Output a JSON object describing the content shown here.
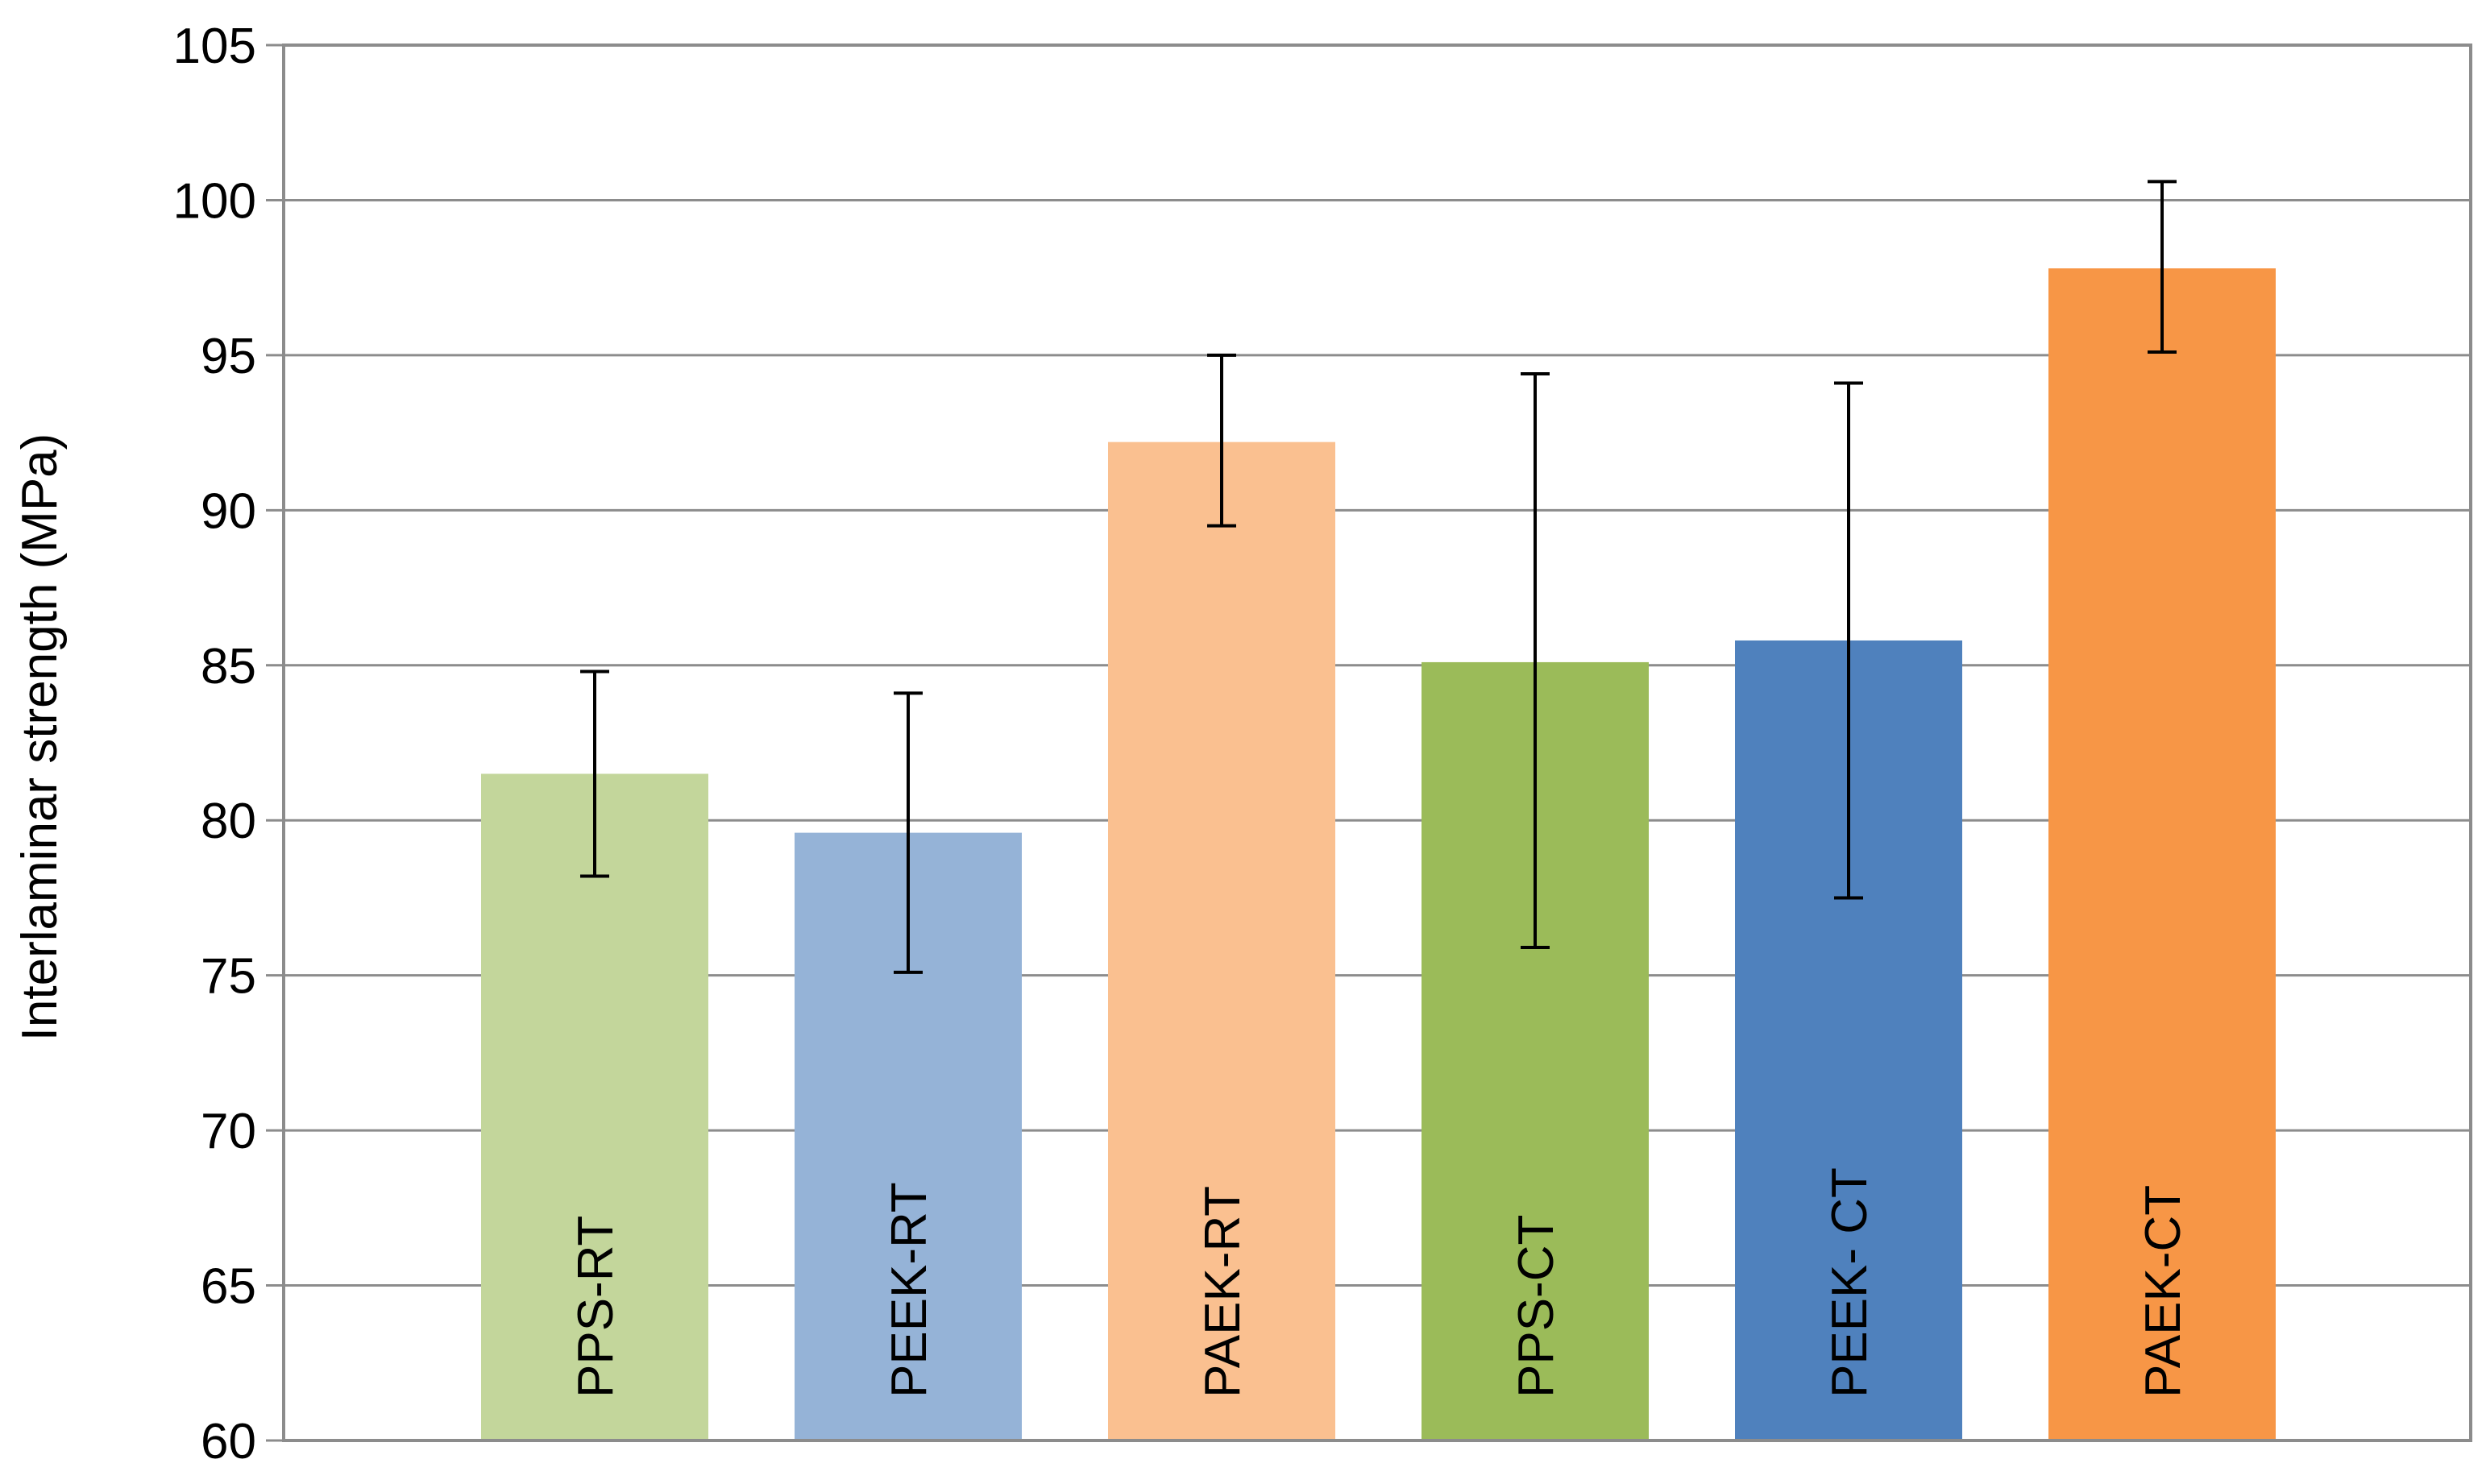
{
  "chart_data": {
    "type": "bar",
    "title": "",
    "xlabel": "",
    "ylabel": "Interlaminar strength (MPa)",
    "ylim": [
      60,
      105
    ],
    "yticks": [
      60,
      65,
      70,
      75,
      80,
      85,
      90,
      95,
      100,
      105
    ],
    "grid": true,
    "categories": [
      "PPS-RT",
      "PEEK-RT",
      "PAEK-RT",
      "PPS-CT",
      "PEEK- CT",
      "PAEK-CT"
    ],
    "values": [
      81.5,
      79.6,
      92.2,
      85.1,
      85.8,
      97.8
    ],
    "error_low": [
      78.2,
      75.1,
      89.5,
      75.9,
      77.5,
      95.1
    ],
    "error_high": [
      84.8,
      84.1,
      95.0,
      94.4,
      94.1,
      100.6
    ],
    "colors": [
      "#c3d69b",
      "#95b3d7",
      "#fac090",
      "#9bbb59",
      "#4f81bd",
      "#f79646"
    ]
  }
}
